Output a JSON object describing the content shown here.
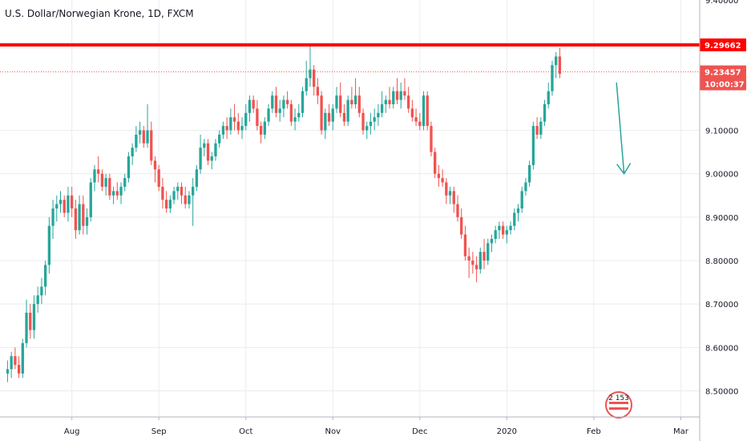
{
  "chart_data": {
    "type": "candlestick",
    "title": "U.S. Dollar/Norwegian Krone, 1D, FXCM",
    "ylim": [
      8.44,
      9.4
    ],
    "y_ticks": [
      "9.40000",
      "9.10000",
      "9.00000",
      "8.90000",
      "8.80000",
      "8.70000",
      "8.60000",
      "8.50000"
    ],
    "x_ticks": [
      "Aug",
      "Sep",
      "Oct",
      "Nov",
      "Dec",
      "2020",
      "Feb",
      "Mar"
    ],
    "x_tick_positions": [
      19,
      42,
      65,
      88,
      111,
      134,
      157,
      180
    ],
    "x_range": [
      0,
      185
    ],
    "grid": true,
    "colors": {
      "up": "#26a69a",
      "down": "#ef5350",
      "resistance": "#ff0000",
      "current_price": "#ef5350",
      "arrow": "#26a69a",
      "grid": "#e9ecf2"
    },
    "resistance_level": {
      "value": 9.29662,
      "label": "9.29662"
    },
    "current_price": {
      "value": 9.23457,
      "label": "9.23457",
      "countdown": "10:00:37"
    },
    "forecast_arrow": {
      "from": [
        163,
        9.21
      ],
      "to": [
        165,
        9.0
      ]
    },
    "logo_text": "2 153",
    "candles": [
      [
        2,
        8.54,
        8.57,
        8.52,
        8.55
      ],
      [
        3,
        8.55,
        8.59,
        8.53,
        8.58
      ],
      [
        4,
        8.58,
        8.6,
        8.55,
        8.56
      ],
      [
        5,
        8.56,
        8.58,
        8.53,
        8.54
      ],
      [
        6,
        8.54,
        8.62,
        8.53,
        8.61
      ],
      [
        7,
        8.61,
        8.71,
        8.6,
        8.68
      ],
      [
        8,
        8.68,
        8.7,
        8.62,
        8.64
      ],
      [
        9,
        8.64,
        8.72,
        8.62,
        8.7
      ],
      [
        10,
        8.7,
        8.74,
        8.68,
        8.72
      ],
      [
        11,
        8.72,
        8.76,
        8.7,
        8.74
      ],
      [
        12,
        8.74,
        8.8,
        8.72,
        8.79
      ],
      [
        13,
        8.79,
        8.9,
        8.77,
        8.88
      ],
      [
        14,
        8.88,
        8.94,
        8.85,
        8.92
      ],
      [
        15,
        8.92,
        8.95,
        8.89,
        8.93
      ],
      [
        16,
        8.93,
        8.96,
        8.91,
        8.94
      ],
      [
        17,
        8.94,
        8.95,
        8.9,
        8.91
      ],
      [
        18,
        8.91,
        8.97,
        8.89,
        8.95
      ],
      [
        19,
        8.95,
        8.97,
        8.9,
        8.92
      ],
      [
        20,
        8.92,
        8.94,
        8.85,
        8.87
      ],
      [
        21,
        8.87,
        8.95,
        8.86,
        8.93
      ],
      [
        22,
        8.93,
        8.95,
        8.86,
        8.88
      ],
      [
        23,
        8.88,
        8.92,
        8.86,
        8.9
      ],
      [
        24,
        8.9,
        8.99,
        8.89,
        8.98
      ],
      [
        25,
        8.98,
        9.02,
        8.96,
        9.01
      ],
      [
        26,
        9.01,
        9.04,
        8.98,
        9.0
      ],
      [
        27,
        9.0,
        9.01,
        8.96,
        8.97
      ],
      [
        28,
        8.97,
        9.0,
        8.95,
        8.99
      ],
      [
        29,
        8.99,
        9.0,
        8.94,
        8.95
      ],
      [
        30,
        8.95,
        8.97,
        8.93,
        8.96
      ],
      [
        31,
        8.96,
        8.98,
        8.94,
        8.95
      ],
      [
        32,
        8.95,
        8.98,
        8.93,
        8.97
      ],
      [
        33,
        8.97,
        9.0,
        8.96,
        8.99
      ],
      [
        34,
        8.99,
        9.05,
        8.98,
        9.04
      ],
      [
        35,
        9.04,
        9.07,
        9.02,
        9.06
      ],
      [
        36,
        9.06,
        9.11,
        9.05,
        9.09
      ],
      [
        37,
        9.09,
        9.12,
        9.07,
        9.1
      ],
      [
        38,
        9.1,
        9.11,
        9.06,
        9.07
      ],
      [
        39,
        9.07,
        9.16,
        9.06,
        9.1
      ],
      [
        40,
        9.1,
        9.12,
        9.02,
        9.03
      ],
      [
        41,
        9.03,
        9.04,
        8.98,
        9.01
      ],
      [
        42,
        9.01,
        9.02,
        8.96,
        8.97
      ],
      [
        43,
        8.97,
        8.99,
        8.92,
        8.94
      ],
      [
        44,
        8.94,
        8.96,
        8.91,
        8.92
      ],
      [
        45,
        8.92,
        8.95,
        8.91,
        8.94
      ],
      [
        46,
        8.94,
        8.97,
        8.93,
        8.96
      ],
      [
        47,
        8.96,
        8.98,
        8.94,
        8.97
      ],
      [
        48,
        8.97,
        8.98,
        8.93,
        8.95
      ],
      [
        49,
        8.95,
        8.97,
        8.92,
        8.93
      ],
      [
        50,
        8.93,
        8.96,
        8.92,
        8.95
      ],
      [
        51,
        8.95,
        8.99,
        8.88,
        8.97
      ],
      [
        52,
        8.97,
        9.02,
        8.96,
        9.01
      ],
      [
        53,
        9.01,
        9.09,
        9.0,
        9.06
      ],
      [
        54,
        9.06,
        9.08,
        9.04,
        9.07
      ],
      [
        55,
        9.07,
        9.08,
        9.02,
        9.03
      ],
      [
        56,
        9.03,
        9.05,
        9.01,
        9.04
      ],
      [
        57,
        9.04,
        9.08,
        9.03,
        9.07
      ],
      [
        58,
        9.07,
        9.1,
        9.06,
        9.09
      ],
      [
        59,
        9.09,
        9.12,
        9.08,
        9.11
      ],
      [
        60,
        9.11,
        9.13,
        9.08,
        9.1
      ],
      [
        61,
        9.1,
        9.15,
        9.09,
        9.13
      ],
      [
        62,
        9.13,
        9.16,
        9.1,
        9.12
      ],
      [
        63,
        9.12,
        9.14,
        9.09,
        9.1
      ],
      [
        64,
        9.1,
        9.13,
        9.08,
        9.11
      ],
      [
        65,
        9.11,
        9.16,
        9.1,
        9.14
      ],
      [
        66,
        9.14,
        9.18,
        9.12,
        9.17
      ],
      [
        67,
        9.17,
        9.18,
        9.14,
        9.15
      ],
      [
        68,
        9.15,
        9.17,
        9.1,
        9.11
      ],
      [
        69,
        9.11,
        9.12,
        9.07,
        9.09
      ],
      [
        70,
        9.09,
        9.13,
        9.08,
        9.12
      ],
      [
        71,
        9.12,
        9.16,
        9.11,
        9.15
      ],
      [
        72,
        9.15,
        9.19,
        9.14,
        9.18
      ],
      [
        73,
        9.18,
        9.2,
        9.13,
        9.14
      ],
      [
        74,
        9.14,
        9.17,
        9.12,
        9.15
      ],
      [
        75,
        9.15,
        9.18,
        9.13,
        9.17
      ],
      [
        76,
        9.17,
        9.19,
        9.15,
        9.16
      ],
      [
        77,
        9.16,
        9.17,
        9.11,
        9.12
      ],
      [
        78,
        9.12,
        9.15,
        9.1,
        9.13
      ],
      [
        79,
        9.13,
        9.16,
        9.12,
        9.14
      ],
      [
        80,
        9.14,
        9.2,
        9.13,
        9.19
      ],
      [
        81,
        9.19,
        9.26,
        9.18,
        9.22
      ],
      [
        82,
        9.22,
        9.3,
        9.2,
        9.24
      ],
      [
        83,
        9.24,
        9.25,
        9.18,
        9.2
      ],
      [
        84,
        9.2,
        9.22,
        9.16,
        9.18
      ],
      [
        85,
        9.18,
        9.19,
        9.09,
        9.1
      ],
      [
        86,
        9.1,
        9.15,
        9.08,
        9.14
      ],
      [
        87,
        9.14,
        9.16,
        9.11,
        9.12
      ],
      [
        88,
        9.12,
        9.16,
        9.1,
        9.15
      ],
      [
        89,
        9.15,
        9.2,
        9.14,
        9.18
      ],
      [
        90,
        9.18,
        9.21,
        9.13,
        9.14
      ],
      [
        91,
        9.14,
        9.16,
        9.11,
        9.12
      ],
      [
        92,
        9.12,
        9.18,
        9.11,
        9.17
      ],
      [
        93,
        9.17,
        9.2,
        9.15,
        9.16
      ],
      [
        94,
        9.16,
        9.22,
        9.15,
        9.18
      ],
      [
        95,
        9.18,
        9.2,
        9.13,
        9.14
      ],
      [
        96,
        9.14,
        9.15,
        9.09,
        9.1
      ],
      [
        97,
        9.1,
        9.12,
        9.08,
        9.11
      ],
      [
        98,
        9.11,
        9.14,
        9.09,
        9.12
      ],
      [
        99,
        9.12,
        9.15,
        9.1,
        9.13
      ],
      [
        100,
        9.13,
        9.16,
        9.11,
        9.14
      ],
      [
        101,
        9.14,
        9.19,
        9.13,
        9.16
      ],
      [
        102,
        9.16,
        9.18,
        9.14,
        9.17
      ],
      [
        103,
        9.17,
        9.2,
        9.15,
        9.16
      ],
      [
        104,
        9.16,
        9.2,
        9.15,
        9.19
      ],
      [
        105,
        9.19,
        9.22,
        9.16,
        9.17
      ],
      [
        106,
        9.17,
        9.21,
        9.15,
        9.19
      ],
      [
        107,
        9.19,
        9.22,
        9.17,
        9.18
      ],
      [
        108,
        9.18,
        9.2,
        9.14,
        9.15
      ],
      [
        109,
        9.15,
        9.17,
        9.12,
        9.13
      ],
      [
        110,
        9.13,
        9.15,
        9.11,
        9.12
      ],
      [
        111,
        9.12,
        9.14,
        9.1,
        9.11
      ],
      [
        112,
        9.11,
        9.19,
        9.1,
        9.18
      ],
      [
        113,
        9.18,
        9.19,
        9.1,
        9.11
      ],
      [
        114,
        9.11,
        9.12,
        9.04,
        9.05
      ],
      [
        115,
        9.05,
        9.06,
        8.99,
        9.0
      ],
      [
        116,
        9.0,
        9.02,
        8.97,
        8.99
      ],
      [
        117,
        8.99,
        9.01,
        8.97,
        8.98
      ],
      [
        118,
        8.98,
        8.99,
        8.93,
        8.95
      ],
      [
        119,
        8.95,
        8.97,
        8.93,
        8.96
      ],
      [
        120,
        8.96,
        8.97,
        8.91,
        8.93
      ],
      [
        121,
        8.93,
        8.95,
        8.89,
        8.9
      ],
      [
        122,
        8.9,
        8.92,
        8.85,
        8.86
      ],
      [
        123,
        8.86,
        8.88,
        8.8,
        8.81
      ],
      [
        124,
        8.81,
        8.83,
        8.76,
        8.8
      ],
      [
        125,
        8.8,
        8.82,
        8.77,
        8.79
      ],
      [
        126,
        8.79,
        8.81,
        8.75,
        8.78
      ],
      [
        127,
        8.78,
        8.83,
        8.77,
        8.82
      ],
      [
        128,
        8.82,
        8.85,
        8.78,
        8.8
      ],
      [
        129,
        8.8,
        8.85,
        8.79,
        8.84
      ],
      [
        130,
        8.84,
        8.86,
        8.82,
        8.85
      ],
      [
        131,
        8.85,
        8.88,
        8.84,
        8.87
      ],
      [
        132,
        8.87,
        8.89,
        8.85,
        8.88
      ],
      [
        133,
        8.88,
        8.89,
        8.85,
        8.86
      ],
      [
        134,
        8.86,
        8.88,
        8.84,
        8.87
      ],
      [
        135,
        8.87,
        8.89,
        8.86,
        8.88
      ],
      [
        136,
        8.88,
        8.92,
        8.87,
        8.91
      ],
      [
        137,
        8.91,
        8.93,
        8.89,
        8.92
      ],
      [
        138,
        8.92,
        8.97,
        8.91,
        8.96
      ],
      [
        139,
        8.96,
        8.99,
        8.95,
        8.98
      ],
      [
        140,
        8.98,
        9.03,
        8.97,
        9.02
      ],
      [
        141,
        9.02,
        9.12,
        9.01,
        9.11
      ],
      [
        142,
        9.11,
        9.13,
        9.08,
        9.09
      ],
      [
        143,
        9.09,
        9.13,
        9.08,
        9.12
      ],
      [
        144,
        9.12,
        9.17,
        9.11,
        9.16
      ],
      [
        145,
        9.16,
        9.21,
        9.15,
        9.19
      ],
      [
        146,
        9.19,
        9.26,
        9.18,
        9.25
      ],
      [
        147,
        9.25,
        9.28,
        9.22,
        9.27
      ],
      [
        148,
        9.27,
        9.29,
        9.22,
        9.23
      ]
    ]
  }
}
